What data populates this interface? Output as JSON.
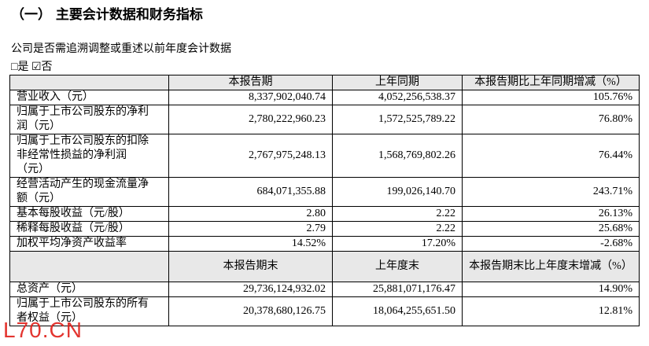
{
  "header": {
    "title": "（一） 主要会计数据和财务指标"
  },
  "intro": "公司是否需追溯调整或重述以前年度会计数据",
  "choice": "□是 ☑否",
  "table": {
    "header1": [
      "",
      "本报告期",
      "上年同期",
      "本报告期比上年同期增减（%）"
    ],
    "rows1": [
      [
        "营业收入（元）",
        "8,337,902,040.74",
        "4,052,256,538.37",
        "105.76%"
      ],
      [
        "归属于上市公司股东的净利润（元）",
        "2,780,222,960.23",
        "1,572,525,789.22",
        "76.80%"
      ],
      [
        "归属于上市公司股东的扣除非经常性损益的净利润（元）",
        "2,767,975,248.13",
        "1,568,769,802.26",
        "76.44%"
      ],
      [
        "经营活动产生的现金流量净额（元）",
        "684,071,355.88",
        "199,026,140.70",
        "243.71%"
      ],
      [
        "基本每股收益（元/股）",
        "2.80",
        "2.22",
        "26.13%"
      ],
      [
        "稀释每股收益（元/股）",
        "2.79",
        "2.22",
        "25.68%"
      ],
      [
        "加权平均净资产收益率",
        "14.52%",
        "17.20%",
        "-2.68%"
      ]
    ],
    "header2": [
      "",
      "本报告期末",
      "上年度末",
      "本报告期末比上年度末增减（%）"
    ],
    "rows2": [
      [
        "总资产（元）",
        "29,736,124,932.02",
        "25,881,071,176.47",
        "14.90%"
      ],
      [
        "归属于上市公司股东的所有者权益（元）",
        "20,378,680,126.75",
        "18,064,255,651.50",
        "12.81%"
      ]
    ]
  },
  "watermark": "L70.CN"
}
